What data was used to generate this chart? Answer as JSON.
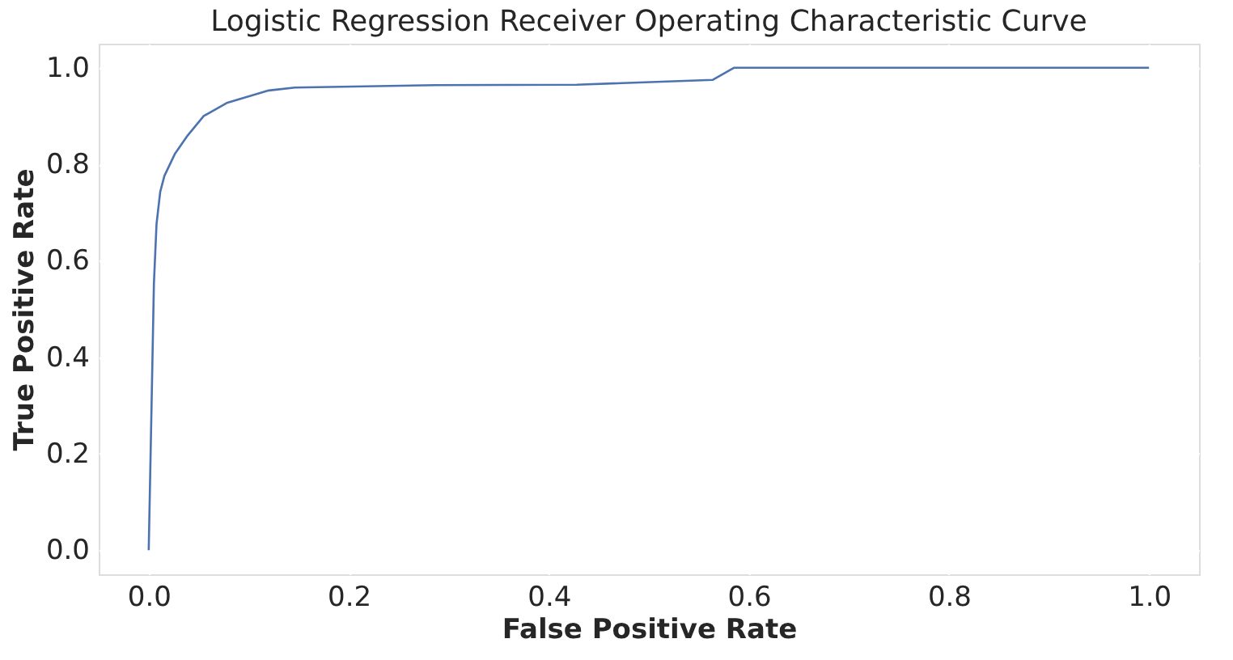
{
  "chart_data": {
    "type": "line",
    "title": "Logistic Regression Receiver Operating Characteristic Curve",
    "xlabel": "False Positive Rate",
    "ylabel": "True Positive Rate",
    "x": [
      0,
      0.0026,
      0.0052,
      0.0078,
      0.0115,
      0.0157,
      0.026,
      0.039,
      0.055,
      0.078,
      0.12,
      0.146,
      0.287,
      0.428,
      0.564,
      0.585,
      1.0
    ],
    "series": [
      {
        "color": "#4c72b0",
        "values": [
          0,
          0.274,
          0.553,
          0.676,
          0.743,
          0.776,
          0.821,
          0.86,
          0.9,
          0.927,
          0.953,
          0.959,
          0.964,
          0.965,
          0.975,
          1.0,
          1.0
        ]
      }
    ],
    "xlim": [
      -0.05,
      1.05
    ],
    "ylim": [
      -0.05,
      1.05
    ],
    "xticks": [
      {
        "value": 0,
        "label": "0.0"
      },
      {
        "value": 0.2,
        "label": "0.2"
      },
      {
        "value": 0.4,
        "label": "0.4"
      },
      {
        "value": 0.6,
        "label": "0.6"
      },
      {
        "value": 0.8,
        "label": "0.8"
      },
      {
        "value": 1,
        "label": "1.0"
      }
    ],
    "yticks": [
      {
        "value": 0,
        "label": "0.0"
      },
      {
        "value": 0.2,
        "label": "0.2"
      },
      {
        "value": 0.4,
        "label": "0.4"
      },
      {
        "value": 0.6,
        "label": "0.6"
      },
      {
        "value": 0.8,
        "label": "0.8"
      },
      {
        "value": 1,
        "label": "1.0"
      }
    ],
    "grid": true,
    "legend": false,
    "marker": "none",
    "line_style": "solid"
  }
}
